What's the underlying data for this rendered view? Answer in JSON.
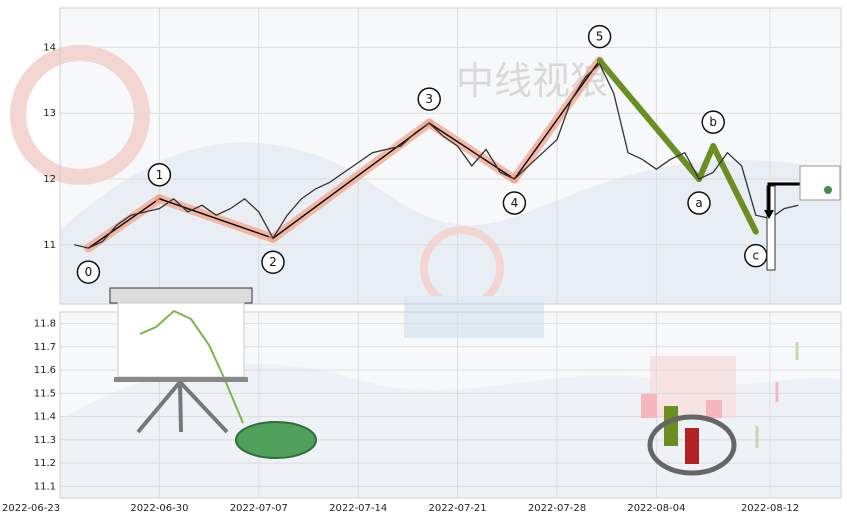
{
  "chart_data": [
    {
      "type": "line",
      "panel": "top",
      "title": "",
      "xlabel": "",
      "ylabel": "",
      "ylim": [
        10.1,
        14.6
      ],
      "yticks": [
        11,
        12,
        13,
        14
      ],
      "xlim": [
        "2022-06-23",
        "2022-08-17"
      ],
      "grid": true,
      "series": [
        {
          "type": "line",
          "color": "#333333",
          "x": [
            "2022-06-24",
            "2022-06-25",
            "2022-06-26",
            "2022-06-27",
            "2022-06-28",
            "2022-06-29",
            "2022-06-30",
            "2022-07-01",
            "2022-07-02",
            "2022-07-03",
            "2022-07-04",
            "2022-07-05",
            "2022-07-06",
            "2022-07-07",
            "2022-07-08",
            "2022-07-09",
            "2022-07-10",
            "2022-07-11",
            "2022-07-12",
            "2022-07-13",
            "2022-07-14",
            "2022-07-15",
            "2022-07-16",
            "2022-07-17",
            "2022-07-18",
            "2022-07-19",
            "2022-07-20",
            "2022-07-21",
            "2022-07-22",
            "2022-07-23",
            "2022-07-24",
            "2022-07-25",
            "2022-07-26",
            "2022-07-27",
            "2022-07-28",
            "2022-07-29",
            "2022-07-30",
            "2022-07-31",
            "2022-08-01",
            "2022-08-02",
            "2022-08-03",
            "2022-08-04",
            "2022-08-05",
            "2022-08-06",
            "2022-08-07",
            "2022-08-08",
            "2022-08-09",
            "2022-08-10",
            "2022-08-11",
            "2022-08-12",
            "2022-08-13",
            "2022-08-14"
          ],
          "y": [
            11.0,
            10.95,
            11.05,
            11.3,
            11.45,
            11.5,
            11.55,
            11.7,
            11.5,
            11.6,
            11.45,
            11.55,
            11.7,
            11.5,
            11.1,
            11.45,
            11.7,
            11.85,
            11.95,
            12.1,
            12.25,
            12.4,
            12.45,
            12.5,
            12.7,
            12.85,
            12.65,
            12.5,
            12.2,
            12.45,
            12.1,
            12.0,
            12.2,
            12.4,
            12.6,
            13.2,
            13.55,
            13.75,
            13.3,
            12.4,
            12.3,
            12.15,
            12.3,
            12.4,
            12.0,
            12.1,
            12.4,
            12.2,
            11.45,
            11.4,
            11.55,
            11.6
          ]
        }
      ],
      "wave_points": [
        {
          "label": "0",
          "x": "2022-06-25",
          "y": 10.95
        },
        {
          "label": "1",
          "x": "2022-06-30",
          "y": 11.7
        },
        {
          "label": "2",
          "x": "2022-07-08",
          "y": 11.1
        },
        {
          "label": "3",
          "x": "2022-07-19",
          "y": 12.85
        },
        {
          "label": "4",
          "x": "2022-07-25",
          "y": 12.0
        },
        {
          "label": "5",
          "x": "2022-07-31",
          "y": 13.8
        },
        {
          "label": "a",
          "x": "2022-08-07",
          "y": 12.0
        },
        {
          "label": "b",
          "x": "2022-08-08",
          "y": 12.5
        },
        {
          "label": "c",
          "x": "2022-08-11",
          "y": 11.2
        }
      ],
      "impulse_color": "#f4a58a",
      "correction_color": "#6b8e23"
    },
    {
      "type": "scatter",
      "panel": "bottom",
      "title": "",
      "ylim": [
        11.05,
        11.85
      ],
      "yticks": [
        11.1,
        11.2,
        11.3,
        11.4,
        11.5,
        11.6,
        11.7,
        11.8
      ],
      "xticks": [
        "2022-06-23",
        "2022-06-30",
        "2022-07-07",
        "2022-07-14",
        "2022-07-21",
        "2022-07-28",
        "2022-08-04",
        "2022-08-12"
      ],
      "grid": true
    }
  ],
  "watermark": "中线视狼"
}
